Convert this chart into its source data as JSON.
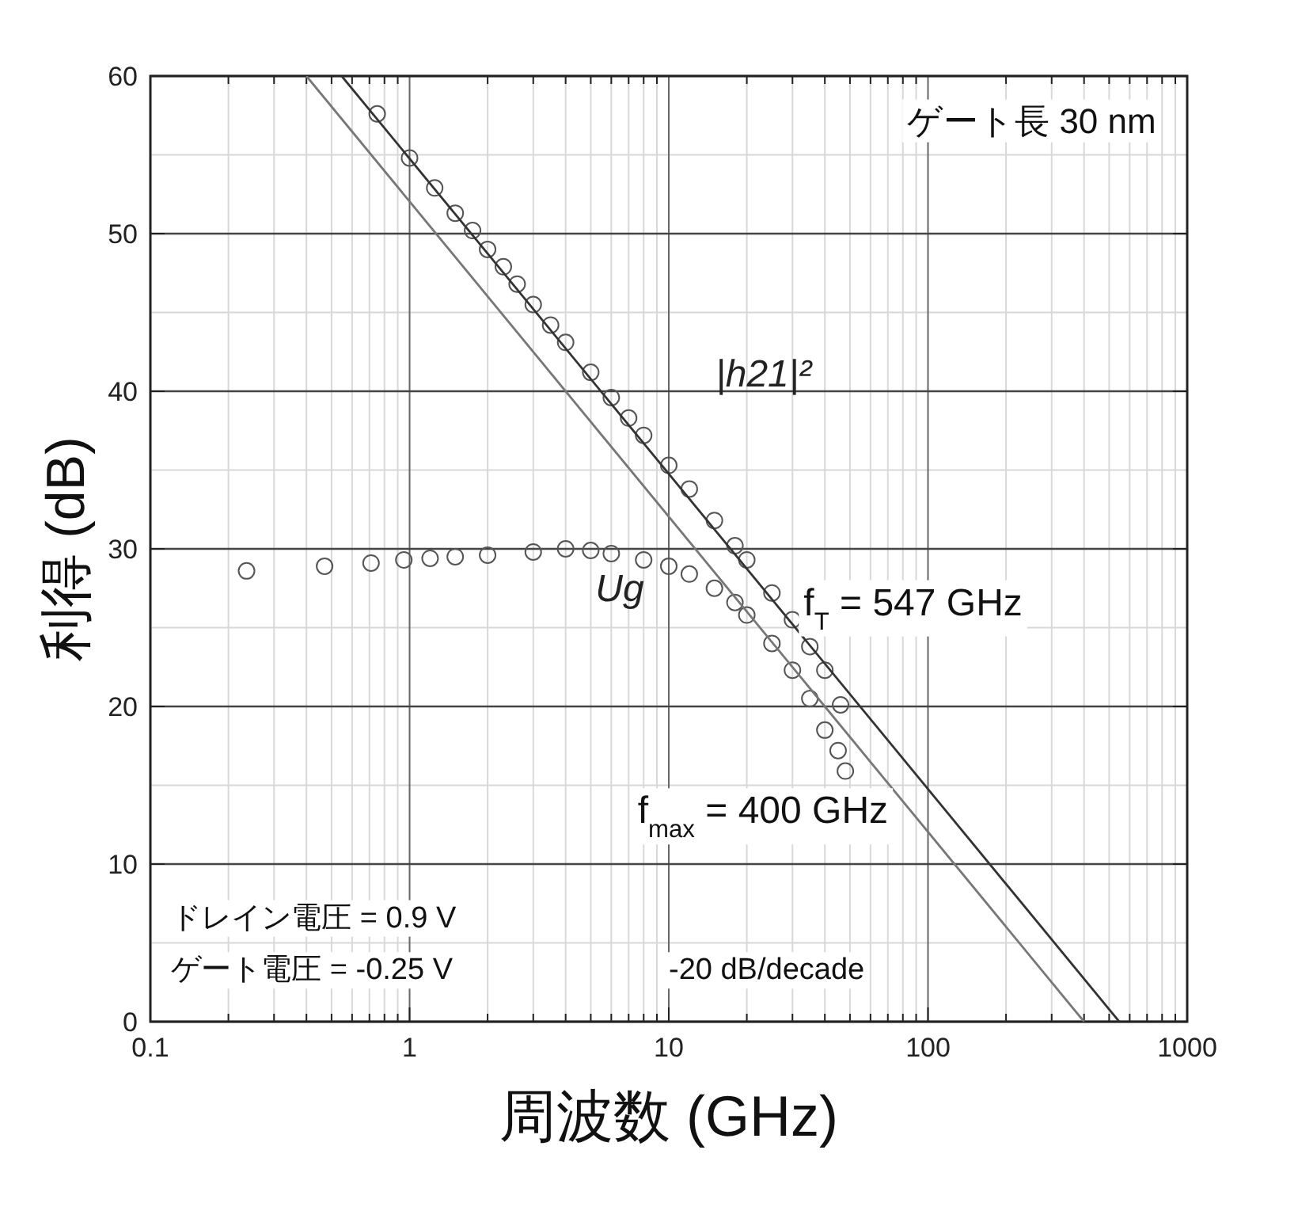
{
  "chart_data": {
    "type": "scatter",
    "xlabel": "周波数 (GHz)",
    "ylabel": "利得 (dB)",
    "log": "x",
    "xlim": [
      0.1,
      1000
    ],
    "ylim": [
      0,
      60
    ],
    "xticks": [
      0.1,
      1,
      10,
      100,
      1000
    ],
    "yticks": [
      0,
      10,
      20,
      30,
      40,
      50,
      60
    ],
    "grid": true,
    "marker": "circle",
    "series": [
      {
        "name": "|h21|²",
        "color": "#555555",
        "x": [
          0.75,
          1.0,
          1.25,
          1.5,
          1.75,
          2.0,
          2.3,
          2.6,
          3,
          3.5,
          4,
          5,
          6,
          7,
          8,
          10,
          12,
          15,
          18,
          20,
          25,
          30,
          35,
          40,
          46
        ],
        "values": [
          57.6,
          54.8,
          52.9,
          51.3,
          50.2,
          49.0,
          47.9,
          46.8,
          45.5,
          44.2,
          43.1,
          41.2,
          39.6,
          38.3,
          37.2,
          35.3,
          33.8,
          31.8,
          30.2,
          29.3,
          27.2,
          25.5,
          23.8,
          22.3,
          20.1
        ]
      },
      {
        "name": "Ug",
        "color": "#555555",
        "x": [
          0.235,
          0.47,
          0.71,
          0.95,
          1.2,
          1.5,
          2,
          3,
          4,
          5,
          6,
          8,
          10,
          12,
          15,
          18,
          20,
          25,
          30,
          35,
          40,
          45,
          48
        ],
        "values": [
          28.6,
          28.9,
          29.1,
          29.3,
          29.4,
          29.5,
          29.6,
          29.8,
          30.0,
          29.9,
          29.7,
          29.3,
          28.9,
          28.4,
          27.5,
          26.6,
          25.8,
          24.0,
          22.3,
          20.5,
          18.5,
          17.2,
          15.9
        ]
      },
      {
        "type": "line",
        "color": "#333333",
        "line_style": "solid",
        "marker": "none",
        "x": [
          0.547,
          547
        ],
        "values": [
          60,
          0
        ]
      },
      {
        "type": "line",
        "color": "#777777",
        "line_style": "solid",
        "marker": "none",
        "x": [
          0.4,
          400
        ],
        "values": [
          60,
          0
        ]
      }
    ],
    "annotations": [
      "ゲート長 30 nm",
      "f$_{T}$ = 547 GHz",
      "f$_{max}$ = 400 GHz",
      "ドレイン電圧 = 0.9 V",
      "ゲート電圧 = -0.25 V",
      "-20 dB/decade"
    ]
  }
}
